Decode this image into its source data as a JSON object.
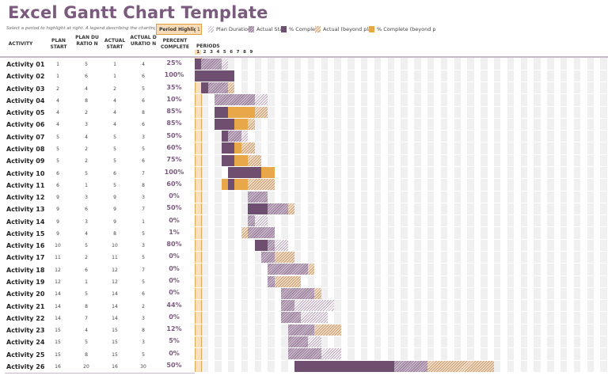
{
  "title": "Excel Gantt Chart Template",
  "instruction": "Select a period to highlight at right.  A legend describing the charting follo",
  "period_highlight": {
    "label": "Period Highlig",
    "value": "1"
  },
  "legend": [
    {
      "label": "Plan Duratior",
      "style": "hatch-light"
    },
    {
      "label": "Actual Sta",
      "style": "hatch-dense"
    },
    {
      "label": "% Complet",
      "style": "solid-dark"
    },
    {
      "label": "Actual (beyond plar",
      "style": "hatch-orange"
    },
    {
      "label": "% Complete (beyond p",
      "style": "solid-orange"
    }
  ],
  "headers": {
    "activity": "ACTIVITY",
    "plan_start": "PLAN START",
    "plan_duration": "PLAN DURATIO N",
    "actual_start": "ACTUAL START",
    "actual_duration": "ACTUAL DURATIO N",
    "percent_complete": "PERCENT COMPLETE",
    "periods": "PERIODS"
  },
  "period_numbers": [
    "1",
    "2",
    "3",
    "4",
    "5",
    "6",
    "7",
    "8",
    "9"
  ],
  "colors": {
    "dark": "#6f4f70",
    "orange": "#e8a84a",
    "highlight": "#f8dcb8",
    "title": "#7a5a7d"
  },
  "activities": [
    {
      "name": "Activity 01",
      "ps": 1,
      "pd": 5,
      "as": 1,
      "ad": 4,
      "pct": "25%"
    },
    {
      "name": "Activity 02",
      "ps": 1,
      "pd": 6,
      "as": 1,
      "ad": 6,
      "pct": "100%"
    },
    {
      "name": "Activity 03",
      "ps": 2,
      "pd": 4,
      "as": 2,
      "ad": 5,
      "pct": "35%"
    },
    {
      "name": "Activity 04",
      "ps": 4,
      "pd": 8,
      "as": 4,
      "ad": 6,
      "pct": "10%"
    },
    {
      "name": "Activity 05",
      "ps": 4,
      "pd": 2,
      "as": 4,
      "ad": 8,
      "pct": "85%"
    },
    {
      "name": "Activity 06",
      "ps": 4,
      "pd": 3,
      "as": 4,
      "ad": 6,
      "pct": "85%"
    },
    {
      "name": "Activity 07",
      "ps": 5,
      "pd": 4,
      "as": 5,
      "ad": 3,
      "pct": "50%"
    },
    {
      "name": "Activity 08",
      "ps": 5,
      "pd": 2,
      "as": 5,
      "ad": 5,
      "pct": "60%"
    },
    {
      "name": "Activity 09",
      "ps": 5,
      "pd": 2,
      "as": 5,
      "ad": 6,
      "pct": "75%"
    },
    {
      "name": "Activity 10",
      "ps": 6,
      "pd": 5,
      "as": 6,
      "ad": 7,
      "pct": "100%"
    },
    {
      "name": "Activity 11",
      "ps": 6,
      "pd": 1,
      "as": 5,
      "ad": 8,
      "pct": "60%"
    },
    {
      "name": "Activity 12",
      "ps": 9,
      "pd": 3,
      "as": 9,
      "ad": 3,
      "pct": "0%"
    },
    {
      "name": "Activity 13",
      "ps": 9,
      "pd": 6,
      "as": 9,
      "ad": 7,
      "pct": "50%"
    },
    {
      "name": "Activity 14",
      "ps": 9,
      "pd": 3,
      "as": 9,
      "ad": 1,
      "pct": "0%"
    },
    {
      "name": "Activity 15",
      "ps": 9,
      "pd": 4,
      "as": 8,
      "ad": 5,
      "pct": "1%"
    },
    {
      "name": "Activity 16",
      "ps": 10,
      "pd": 5,
      "as": 10,
      "ad": 3,
      "pct": "80%"
    },
    {
      "name": "Activity 17",
      "ps": 11,
      "pd": 2,
      "as": 11,
      "ad": 5,
      "pct": "0%"
    },
    {
      "name": "Activity 18",
      "ps": 12,
      "pd": 6,
      "as": 12,
      "ad": 7,
      "pct": "0%"
    },
    {
      "name": "Activity 19",
      "ps": 12,
      "pd": 1,
      "as": 12,
      "ad": 5,
      "pct": "0%"
    },
    {
      "name": "Activity 20",
      "ps": 14,
      "pd": 5,
      "as": 14,
      "ad": 6,
      "pct": "0%"
    },
    {
      "name": "Activity 21",
      "ps": 14,
      "pd": 8,
      "as": 14,
      "ad": 2,
      "pct": "44%"
    },
    {
      "name": "Activity 22",
      "ps": 14,
      "pd": 7,
      "as": 14,
      "ad": 3,
      "pct": "0%"
    },
    {
      "name": "Activity 23",
      "ps": 15,
      "pd": 4,
      "as": 15,
      "ad": 8,
      "pct": "12%"
    },
    {
      "name": "Activity 24",
      "ps": 15,
      "pd": 5,
      "as": 15,
      "ad": 3,
      "pct": "5%"
    },
    {
      "name": "Activity 25",
      "ps": 15,
      "pd": 8,
      "as": 15,
      "ad": 5,
      "pct": "0%"
    },
    {
      "name": "Activity 26",
      "ps": 16,
      "pd": 20,
      "as": 16,
      "ad": 30,
      "pct": "50%"
    }
  ]
}
